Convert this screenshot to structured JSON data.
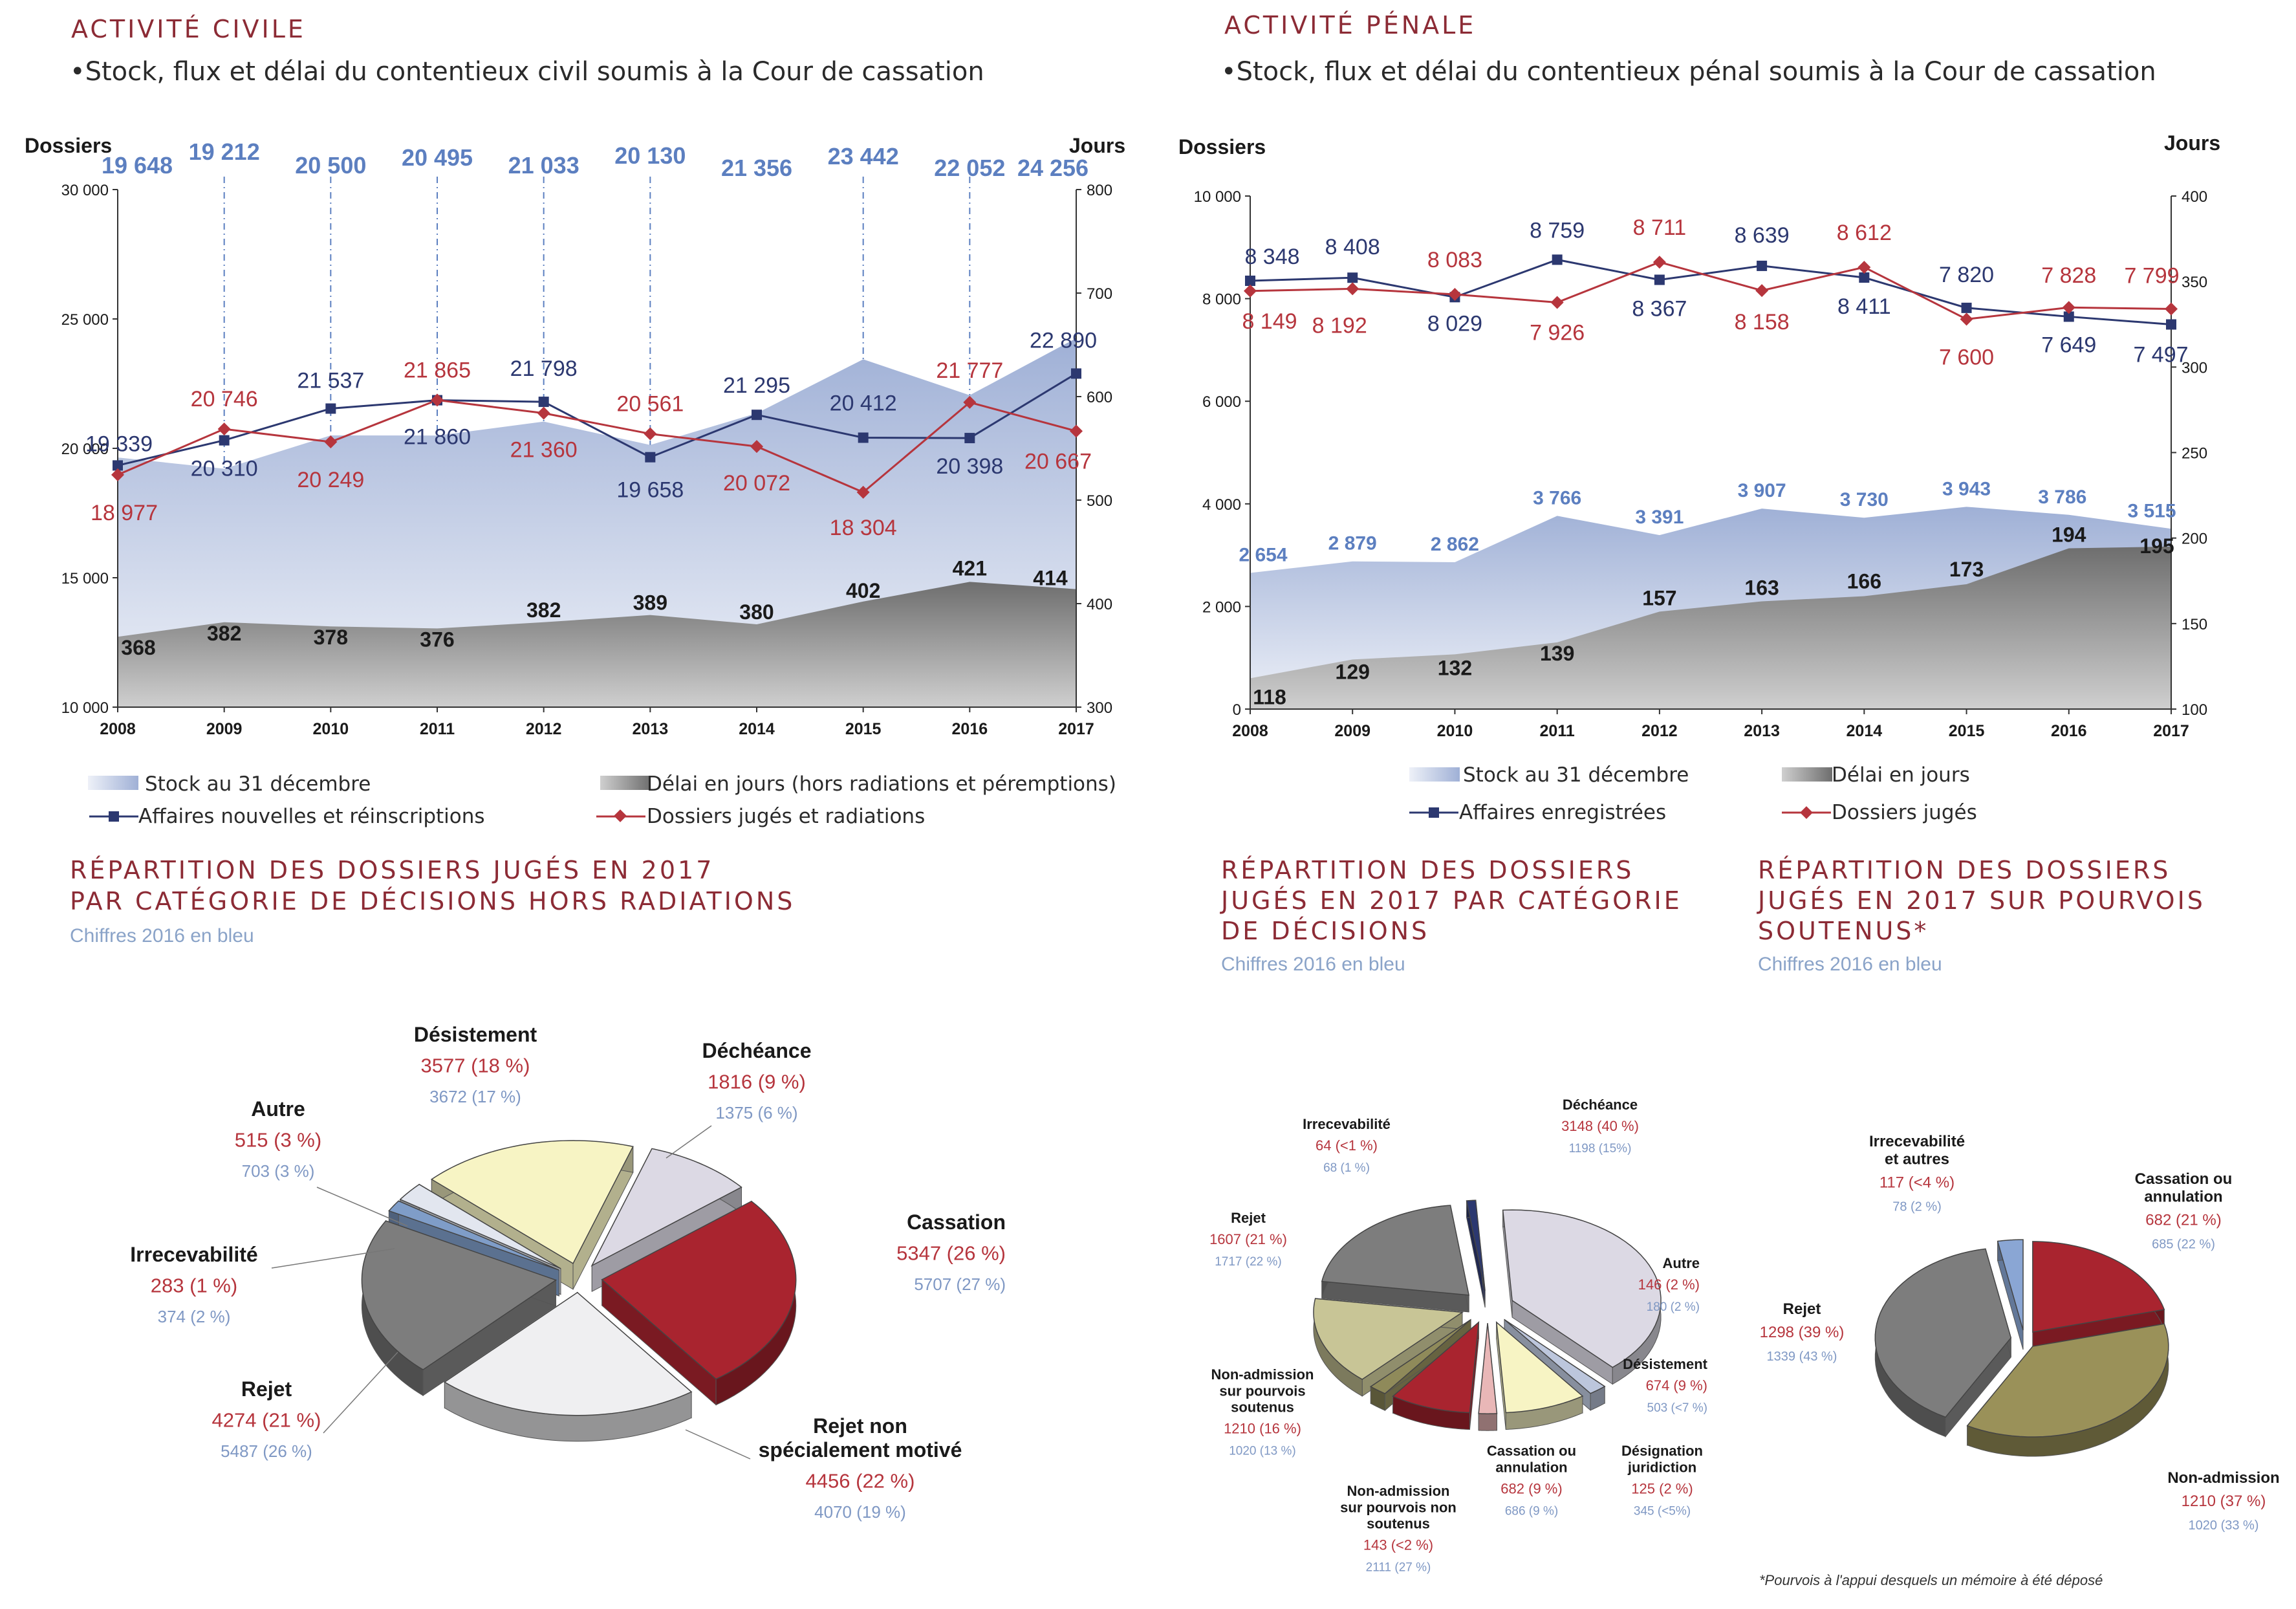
{
  "civil": {
    "section_title": "ACTIVITÉ CIVILE",
    "subtitle": "•Stock, flux et délai du contentieux civil soumis à la Cour de cassation",
    "left_unit": "Dossiers",
    "right_unit": "Jours",
    "legend": {
      "stock": "Stock au 31 décembre",
      "delai": "Délai en jours (hors radiations et péremptions)",
      "nouvelles": "Affaires nouvelles et réinscriptions",
      "juges": "Dossiers jugés et radiations"
    }
  },
  "penal": {
    "section_title": "ACTIVITÉ PÉNALE",
    "subtitle": "•Stock, flux et délai du contentieux pénal soumis à la Cour de cassation",
    "left_unit": "Dossiers",
    "right_unit": "Jours",
    "legend": {
      "stock": "Stock au 31 décembre",
      "delai": "Délai en jours",
      "nouvelles": "Affaires enregistrées",
      "juges": "Dossiers jugés"
    }
  },
  "pie_civil_title": [
    "RÉPARTITION DES DOSSIERS JUGÉS EN 2017",
    "PAR CATÉGORIE DE DÉCISIONS HORS RADIATIONS"
  ],
  "pie_civil_note": "Chiffres 2016 en bleu",
  "pie_penal1_title": [
    "RÉPARTITION DES DOSSIERS",
    "JUGÉS EN 2017 PAR CATÉGORIE",
    "DE DÉCISIONS"
  ],
  "pie_penal1_note": "Chiffres 2016 en bleu",
  "pie_penal2_title": [
    "RÉPARTITION DES DOSSIERS",
    "JUGÉS EN 2017 SUR POURVOIS",
    "SOUTENUS*"
  ],
  "pie_penal2_note": "Chiffres 2016 en bleu",
  "footnote": "*Pourvois à l'appui desquels un mémoire à été déposé",
  "colors": {
    "stock": "#b3c0dd",
    "delai": "#8f8f8f",
    "navy": "#2c3870",
    "red": "#b6353d",
    "blue_label": "#5c7fc0",
    "title_red": "#8c2b35"
  },
  "chart_data": [
    {
      "type": "line",
      "years": [
        "2008",
        "2009",
        "2010",
        "2011",
        "2012",
        "2013",
        "2014",
        "2015",
        "2016",
        "2017"
      ],
      "left_ylim": [
        10000,
        30000
      ],
      "left_ticks": [
        "10 000",
        "15 000",
        "20 000",
        "25 000",
        "30 000"
      ],
      "right_ylim": [
        300,
        800
      ],
      "right_ticks": [
        "300",
        "400",
        "500",
        "600",
        "700",
        "800"
      ],
      "series": [
        {
          "name": "Stock au 31 décembre",
          "kind": "area",
          "axis": "left",
          "values": [
            19648,
            19212,
            20500,
            20495,
            21033,
            20130,
            21356,
            23442,
            22052,
            24256
          ],
          "labels": [
            "19 648",
            "19 212",
            "20 500",
            "20 495",
            "21 033",
            "20 130",
            "21 356",
            "23 442",
            "22 052",
            "24 256"
          ]
        },
        {
          "name": "Délai en jours (hors radiations et péremptions)",
          "kind": "area",
          "axis": "right",
          "values": [
            368,
            382,
            378,
            376,
            382,
            389,
            380,
            402,
            421,
            414
          ],
          "labels": [
            "368",
            "382",
            "378",
            "376",
            "382",
            "389",
            "380",
            "402",
            "421",
            "414"
          ]
        },
        {
          "name": "Affaires nouvelles et réinscriptions",
          "kind": "line",
          "axis": "left",
          "values": [
            19339,
            20310,
            21537,
            21860,
            21798,
            19658,
            21295,
            20412,
            20398,
            22890
          ],
          "labels": [
            "19 339",
            "20 310",
            "21 537",
            "21 860",
            "21 798",
            "19 658",
            "21 295",
            "20 412",
            "20 398",
            "22 890"
          ]
        },
        {
          "name": "Dossiers jugés et radiations",
          "kind": "line",
          "axis": "left",
          "values": [
            18977,
            20746,
            20249,
            21865,
            21360,
            20561,
            20072,
            18304,
            21777,
            20667
          ],
          "labels": [
            "18 977",
            "20 746",
            "20 249",
            "21 865",
            "21 360",
            "20 561",
            "20 072",
            "18 304",
            "21 777",
            "20 667"
          ]
        }
      ]
    },
    {
      "type": "line",
      "years": [
        "2008",
        "2009",
        "2010",
        "2011",
        "2012",
        "2013",
        "2014",
        "2015",
        "2016",
        "2017"
      ],
      "left_ylim": [
        0,
        10000
      ],
      "left_ticks": [
        "0",
        "2 000",
        "4 000",
        "6 000",
        "8 000",
        "10 000"
      ],
      "right_ylim": [
        100,
        400
      ],
      "right_ticks": [
        "100",
        "150",
        "200",
        "250",
        "300",
        "350",
        "400"
      ],
      "series": [
        {
          "name": "Stock au 31 décembre",
          "kind": "area",
          "axis": "left",
          "values": [
            2654,
            2879,
            2862,
            3766,
            3391,
            3907,
            3730,
            3943,
            3786,
            3515
          ],
          "labels": [
            "2 654",
            "2 879",
            "2 862",
            "3 766",
            "3 391",
            "3 907",
            "3 730",
            "3 943",
            "3 786",
            "3 515"
          ]
        },
        {
          "name": "Délai en jours",
          "kind": "area",
          "axis": "right",
          "values": [
            118,
            129,
            132,
            139,
            157,
            163,
            166,
            173,
            194,
            195
          ],
          "labels": [
            "118",
            "129",
            "132",
            "139",
            "157",
            "163",
            "166",
            "173",
            "194",
            "195"
          ]
        },
        {
          "name": "Affaires enregistrées",
          "kind": "line",
          "axis": "left",
          "values": [
            8348,
            8408,
            8029,
            8759,
            8367,
            8639,
            8411,
            7820,
            7649,
            7497
          ],
          "labels": [
            "8 348",
            "8 408",
            "8 029",
            "8 759",
            "8 367",
            "8 639",
            "8 411",
            "7 820",
            "7 649",
            "7 497"
          ]
        },
        {
          "name": "Dossiers jugés",
          "kind": "line",
          "axis": "left",
          "values": [
            8149,
            8192,
            8083,
            7926,
            8711,
            8158,
            8612,
            7600,
            7828,
            7799
          ],
          "labels": [
            "8 149",
            "8 192",
            "8 083",
            "7 926",
            "8 711",
            "8 158",
            "8 612",
            "7 600",
            "7 828",
            "7 799"
          ]
        }
      ]
    },
    {
      "type": "pie",
      "slices": [
        {
          "name": "Désistement",
          "label2017": "3577 (18 %)",
          "label2016": "3672 (17 %)",
          "value": 18,
          "color": "#f7f4c4"
        },
        {
          "name": "Déchéance",
          "label2017": "1816 (9 %)",
          "label2016": "1375 (6 %)",
          "value": 9,
          "color": "#dcd9e4"
        },
        {
          "name": "Cassation",
          "label2017": "5347 (26 %)",
          "label2016": "5707 (27 %)",
          "value": 26,
          "color": "#a9242f"
        },
        {
          "name": "Rejet non spécialement motivé",
          "label2017": "4456 (22 %)",
          "label2016": "4070 (19 %)",
          "value": 22,
          "color": "#efeff1"
        },
        {
          "name": "Rejet",
          "label2017": "4274 (21 %)",
          "label2016": "5487 (26 %)",
          "value": 21,
          "color": "#7d7d7d"
        },
        {
          "name": "Irrecevabilité",
          "label2017": "283 (1 %)",
          "label2016": "374 (2 %)",
          "value": 1.5,
          "color": "#7f9dc8"
        },
        {
          "name": "Autre",
          "label2017": "515 (3 %)",
          "label2016": "703 (3 %)",
          "value": 2.5,
          "color": "#e2e6ef"
        }
      ]
    },
    {
      "type": "pie",
      "slices": [
        {
          "name": "Déchéance",
          "label2017": "3148 (40 %)",
          "label2016": "1198 (15%)",
          "value": 40,
          "color": "#dcd9e4"
        },
        {
          "name": "Autre",
          "label2017": "146 (2 %)",
          "label2016": "180 (2 %)",
          "value": 2,
          "color": "#bcc6dc"
        },
        {
          "name": "Désistement",
          "label2017": "674 (9 %)",
          "label2016": "503 (<7 %)",
          "value": 9,
          "color": "#f7f4c4"
        },
        {
          "name": "Désignation juridiction",
          "label2017": "125 (2 %)",
          "label2016": "345 (<5%)",
          "value": 2,
          "color": "#e9b7b7"
        },
        {
          "name": "Cassation ou annulation",
          "label2017": "682 (9 %)",
          "label2016": "686 (9 %)",
          "value": 9,
          "color": "#a9242f"
        },
        {
          "name": "Non-admission sur pourvois non soutenus",
          "label2017": "143 (<2 %)",
          "label2016": "2111 (27 %)",
          "value": 2,
          "color": "#8f8a5a"
        },
        {
          "name": "Non-admission sur pourvois soutenus",
          "label2017": "1210 (16 %)",
          "label2016": "1020 (13 %)",
          "value": 16,
          "color": "#c8c596"
        },
        {
          "name": "Rejet",
          "label2017": "1607 (21 %)",
          "label2016": "1717 (22 %)",
          "value": 21,
          "color": "#7d7d7d"
        },
        {
          "name": "Irrecevabilité",
          "label2017": "64 (<1 %)",
          "label2016": "68 (1 %)",
          "value": 1,
          "color": "#2c3870"
        }
      ]
    },
    {
      "type": "pie",
      "slices": [
        {
          "name": "Cassation ou annulation",
          "label2017": "682 (21 %)",
          "label2016": "685 (22 %)",
          "value": 21,
          "color": "#a9242f"
        },
        {
          "name": "Non-admission",
          "label2017": "1210 (37 %)",
          "label2016": "1020 (33 %)",
          "value": 37,
          "color": "#9a9159"
        },
        {
          "name": "Rejet",
          "label2017": "1298 (39 %)",
          "label2016": "1339 (43 %)",
          "value": 39,
          "color": "#7d7d7d"
        },
        {
          "name": "Irrecevabilité et autres",
          "label2017": "117 (<4 %)",
          "label2016": "78 (2 %)",
          "value": 3,
          "color": "#8aa6d4"
        }
      ]
    }
  ]
}
